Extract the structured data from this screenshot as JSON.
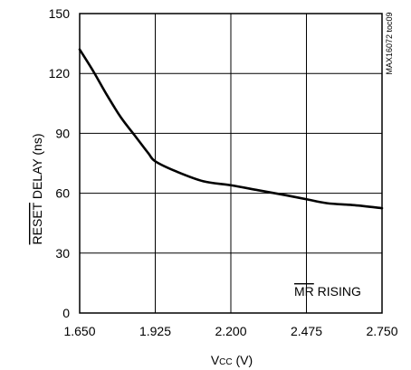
{
  "chart_data": {
    "type": "line",
    "xlabel": {
      "main": "V",
      "sub": "CC",
      "unit": " (V)"
    },
    "ylabel": {
      "overline": "RESET",
      "rest": " DELAY (ns)"
    },
    "x_ticks": [
      "1.650",
      "1.925",
      "2.200",
      "2.475",
      "2.750"
    ],
    "y_ticks": [
      "0",
      "30",
      "60",
      "90",
      "120",
      "150"
    ],
    "xlim": [
      1.65,
      2.75
    ],
    "ylim": [
      0,
      150
    ],
    "grid": true,
    "annotation": {
      "overline": "MR",
      "rest": " RISING"
    },
    "figure_id": "MAX16072 toc09",
    "series": [
      {
        "color": "#000000",
        "x": [
          1.65,
          1.7,
          1.75,
          1.8,
          1.85,
          1.9,
          1.925,
          2.0,
          2.1,
          2.2,
          2.3,
          2.4,
          2.475,
          2.55,
          2.65,
          2.75
        ],
        "y": [
          132,
          121,
          109,
          98,
          89,
          80,
          76,
          71,
          66,
          64,
          61.5,
          59,
          57,
          55,
          54,
          52.5
        ]
      }
    ]
  }
}
